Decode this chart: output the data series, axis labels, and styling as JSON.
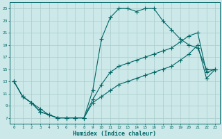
{
  "xlabel": "Humidex (Indice chaleur)",
  "background_color": "#cce8e8",
  "line_color": "#006666",
  "grid_color": "#aacccc",
  "xlim": [
    -0.5,
    23.5
  ],
  "ylim": [
    6,
    26
  ],
  "yticks": [
    7,
    9,
    11,
    13,
    15,
    17,
    19,
    21,
    23,
    25
  ],
  "xticks": [
    0,
    1,
    2,
    3,
    4,
    5,
    6,
    7,
    8,
    9,
    10,
    11,
    12,
    13,
    14,
    15,
    16,
    17,
    18,
    19,
    20,
    21,
    22,
    23
  ],
  "line1_x": [
    0,
    1,
    2,
    3,
    4,
    5,
    6,
    7,
    8,
    9,
    10,
    11,
    12,
    13,
    14,
    15,
    16,
    17,
    18,
    19,
    20,
    21,
    22,
    23
  ],
  "line1_y": [
    13,
    10.5,
    9.5,
    8.5,
    7.5,
    7,
    7,
    7,
    7,
    11.5,
    20,
    23.5,
    25,
    25,
    24.5,
    25,
    25,
    23,
    21.5,
    20,
    19,
    18.5,
    15,
    15
  ],
  "line2_x": [
    0,
    1,
    2,
    3,
    4,
    5,
    6,
    7,
    8,
    9,
    10,
    11,
    12,
    13,
    14,
    15,
    16,
    17,
    18,
    19,
    20,
    21,
    22,
    23
  ],
  "line2_y": [
    13,
    10.5,
    9.5,
    8,
    7.5,
    7,
    7,
    7,
    7,
    10,
    12.5,
    14.5,
    15.5,
    16,
    16.5,
    17,
    17.5,
    18,
    18.5,
    19.5,
    20.5,
    21,
    14.5,
    15
  ],
  "line3_x": [
    0,
    1,
    2,
    3,
    4,
    5,
    6,
    7,
    8,
    9,
    10,
    11,
    12,
    13,
    14,
    15,
    16,
    17,
    18,
    19,
    20,
    21,
    22,
    23
  ],
  "line3_y": [
    13,
    10.5,
    9.5,
    8,
    7.5,
    7,
    7,
    7,
    7,
    9.5,
    10.5,
    11.5,
    12.5,
    13,
    13.5,
    14,
    14.5,
    15,
    15.5,
    16.5,
    17.5,
    19,
    13.5,
    15
  ]
}
